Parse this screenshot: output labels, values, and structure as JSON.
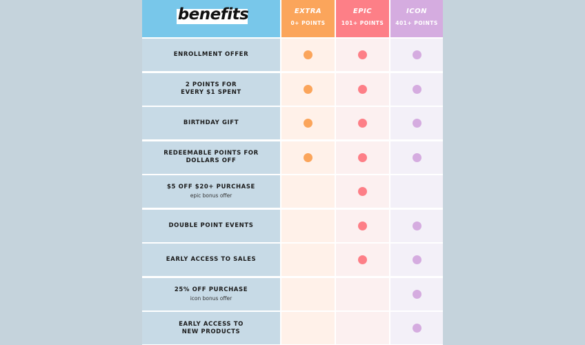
{
  "header": {
    "title": "benefits",
    "tiers": [
      {
        "name": "EXTRA",
        "points": "0+ POINTS",
        "color": "#fba55b"
      },
      {
        "name": "EPIC",
        "points": "101+ POINTS",
        "color": "#fd7f87"
      },
      {
        "name": "ICON",
        "points": "401+ POINTS",
        "color": "#d5ace0"
      }
    ]
  },
  "rows": [
    {
      "label": "ENROLLMENT OFFER",
      "sub": "",
      "extra": true,
      "epic": true,
      "icon": true
    },
    {
      "label": "2 POINTS FOR\nEVERY $1 SPENT",
      "sub": "",
      "extra": true,
      "epic": true,
      "icon": true
    },
    {
      "label": "BIRTHDAY GIFT",
      "sub": "",
      "extra": true,
      "epic": true,
      "icon": true
    },
    {
      "label": "REDEEMABLE POINTS FOR\nDOLLARS OFF",
      "sub": "",
      "extra": true,
      "epic": true,
      "icon": true
    },
    {
      "label": "$5 OFF $20+ PURCHASE",
      "sub": "epic bonus offer",
      "extra": false,
      "epic": true,
      "icon": false
    },
    {
      "label": "DOUBLE POINT EVENTS",
      "sub": "",
      "extra": false,
      "epic": true,
      "icon": true
    },
    {
      "label": "EARLY ACCESS TO SALES",
      "sub": "",
      "extra": false,
      "epic": true,
      "icon": true
    },
    {
      "label": "25% OFF PURCHASE",
      "sub": "icon bonus offer",
      "extra": false,
      "epic": false,
      "icon": true
    },
    {
      "label": "EARLY ACCESS TO\nNEW PRODUCTS",
      "sub": "",
      "extra": false,
      "epic": false,
      "icon": true
    }
  ]
}
